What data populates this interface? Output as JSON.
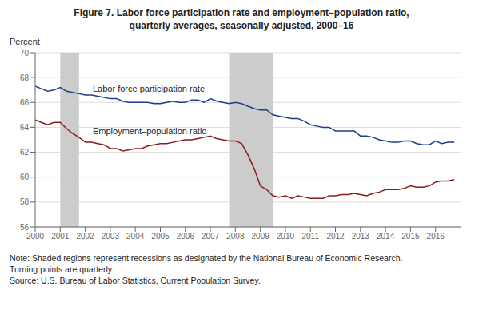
{
  "chart_data": {
    "type": "line",
    "title": "Figure 7. Labor force participation rate and employment–population ratio,",
    "subtitle": "quarterly averages, seasonally adjusted, 2000–16",
    "ylabel": "Percent",
    "notes": [
      "Note: Shaded regions represent recessions as designated by the National Bureau of Economic Research.",
      "Turning points are quarterly.",
      "Source: U.S. Bureau of Labor Statistics, Current Population Survey."
    ],
    "recessions": [
      [
        2001.0,
        2001.75
      ],
      [
        2007.75,
        2009.5
      ]
    ],
    "recession_color": "#cccccc",
    "xlim": [
      2000,
      2017
    ],
    "xticks": [
      2000,
      2001,
      2002,
      2003,
      2004,
      2005,
      2006,
      2007,
      2008,
      2009,
      2010,
      2011,
      2012,
      2013,
      2014,
      2015,
      2016
    ],
    "ylim": [
      56,
      70
    ],
    "yticks": [
      56,
      58,
      60,
      62,
      64,
      66,
      68,
      70
    ],
    "grid": "y",
    "x": [
      2000.0,
      2000.25,
      2000.5,
      2000.75,
      2001.0,
      2001.25,
      2001.5,
      2001.75,
      2002.0,
      2002.25,
      2002.5,
      2002.75,
      2003.0,
      2003.25,
      2003.5,
      2003.75,
      2004.0,
      2004.25,
      2004.5,
      2004.75,
      2005.0,
      2005.25,
      2005.5,
      2005.75,
      2006.0,
      2006.25,
      2006.5,
      2006.75,
      2007.0,
      2007.25,
      2007.5,
      2007.75,
      2008.0,
      2008.25,
      2008.5,
      2008.75,
      2009.0,
      2009.25,
      2009.5,
      2009.75,
      2010.0,
      2010.25,
      2010.5,
      2010.75,
      2011.0,
      2011.25,
      2011.5,
      2011.75,
      2012.0,
      2012.25,
      2012.5,
      2012.75,
      2013.0,
      2013.25,
      2013.5,
      2013.75,
      2014.0,
      2014.25,
      2014.5,
      2014.75,
      2015.0,
      2015.25,
      2015.5,
      2015.75,
      2016.0,
      2016.25,
      2016.5,
      2016.75
    ],
    "series": [
      {
        "name": "Labor force participation rate",
        "color": "#1a3f8f",
        "label_x": 2002.3,
        "label_y": 66.85,
        "values": [
          67.3,
          67.1,
          66.9,
          67.0,
          67.2,
          66.9,
          66.8,
          66.7,
          66.6,
          66.6,
          66.5,
          66.4,
          66.3,
          66.3,
          66.1,
          66.0,
          66.0,
          66.0,
          66.0,
          65.9,
          65.9,
          66.0,
          66.1,
          66.0,
          66.0,
          66.2,
          66.2,
          66.0,
          66.3,
          66.1,
          66.0,
          65.9,
          66.0,
          65.9,
          65.7,
          65.5,
          65.4,
          65.4,
          65.0,
          64.9,
          64.8,
          64.7,
          64.7,
          64.5,
          64.2,
          64.1,
          64.0,
          64.0,
          63.7,
          63.7,
          63.7,
          63.7,
          63.3,
          63.3,
          63.2,
          63.0,
          62.9,
          62.8,
          62.8,
          62.9,
          62.9,
          62.7,
          62.6,
          62.6,
          62.9,
          62.7,
          62.8,
          62.8
        ]
      },
      {
        "name": "Employment–population ratio",
        "color": "#8b1a1a",
        "label_x": 2002.3,
        "label_y": 63.45,
        "values": [
          64.6,
          64.4,
          64.2,
          64.4,
          64.4,
          63.9,
          63.5,
          63.2,
          62.8,
          62.8,
          62.7,
          62.6,
          62.3,
          62.3,
          62.1,
          62.2,
          62.3,
          62.3,
          62.5,
          62.6,
          62.7,
          62.7,
          62.8,
          62.9,
          63.0,
          63.0,
          63.1,
          63.2,
          63.3,
          63.1,
          63.0,
          62.9,
          62.9,
          62.7,
          61.8,
          60.7,
          59.3,
          59.0,
          58.5,
          58.4,
          58.5,
          58.3,
          58.5,
          58.4,
          58.3,
          58.3,
          58.3,
          58.5,
          58.5,
          58.6,
          58.6,
          58.7,
          58.6,
          58.5,
          58.7,
          58.8,
          59.0,
          59.0,
          59.0,
          59.1,
          59.3,
          59.2,
          59.2,
          59.3,
          59.6,
          59.7,
          59.7,
          59.8
        ]
      }
    ]
  }
}
